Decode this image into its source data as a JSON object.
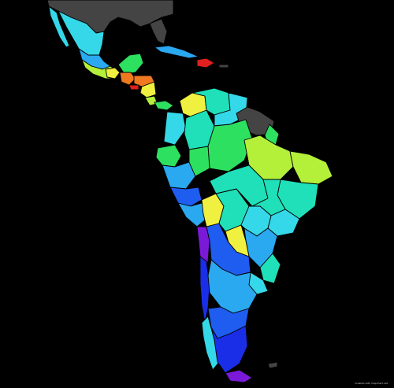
{
  "map": {
    "credit": "Created with mapchart.net",
    "colors": {
      "background": "#000000",
      "no_data": "#444444",
      "cyan": "#35d8e8",
      "sky": "#2aa8f0",
      "blue": "#1f5cf0",
      "deep_blue": "#1a2ee8",
      "teal": "#1fe0b8",
      "green": "#2ee060",
      "lime": "#b4f03a",
      "yellow": "#f0f040",
      "orange": "#f07820",
      "red": "#e02020",
      "purple": "#7a1ad8"
    }
  }
}
